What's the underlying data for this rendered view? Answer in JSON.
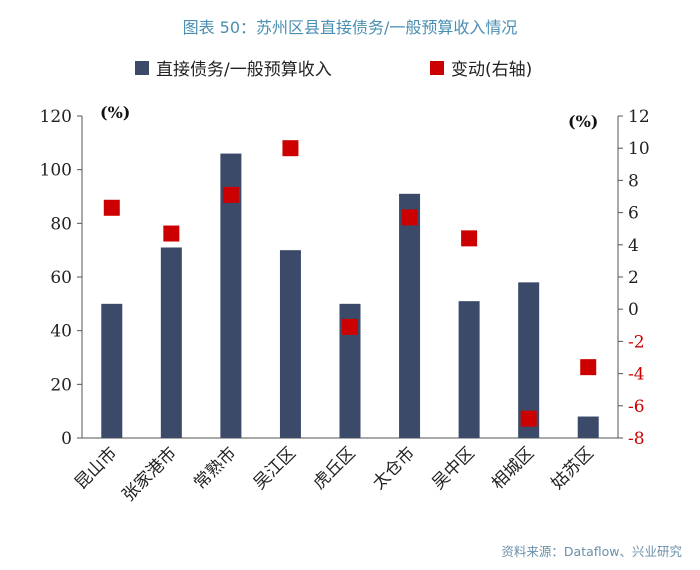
{
  "title": "图表 50：苏州区县直接债务/一般预算收入情况",
  "source": "资料来源：Dataflow、兴业研究",
  "colors": {
    "bar": "#3b4a68",
    "marker": "#cc0000",
    "axis_right": "#cc0000",
    "axis_left": "#222222",
    "title": "#4a8fb3"
  },
  "chart_data": {
    "type": "bar",
    "categories": [
      "昆山市",
      "张家港市",
      "常熟市",
      "吴江区",
      "虎丘区",
      "太仓市",
      "吴中区",
      "相城区",
      "姑苏区"
    ],
    "series": [
      {
        "name": "直接债务/一般预算收入",
        "type": "bar",
        "axis": "left",
        "values": [
          50,
          71,
          106,
          70,
          50,
          91,
          51,
          58,
          8
        ]
      },
      {
        "name": "变动(右轴)",
        "type": "scatter",
        "axis": "right",
        "values": [
          6.3,
          4.7,
          7.1,
          10.0,
          -1.1,
          5.7,
          4.4,
          -6.8,
          -3.6
        ]
      }
    ],
    "y_left": {
      "label": "(%)",
      "lim": [
        0,
        120
      ],
      "ticks": [
        "0",
        "20",
        "40",
        "60",
        "80",
        "100",
        "120"
      ]
    },
    "y_right": {
      "label": "(%)",
      "lim": [
        -8,
        12
      ],
      "ticks": [
        "-8",
        "-6",
        "-4",
        "-2",
        "0",
        "2",
        "4",
        "6",
        "8",
        "10",
        "12"
      ]
    },
    "legend_position": "top",
    "grid": false
  }
}
